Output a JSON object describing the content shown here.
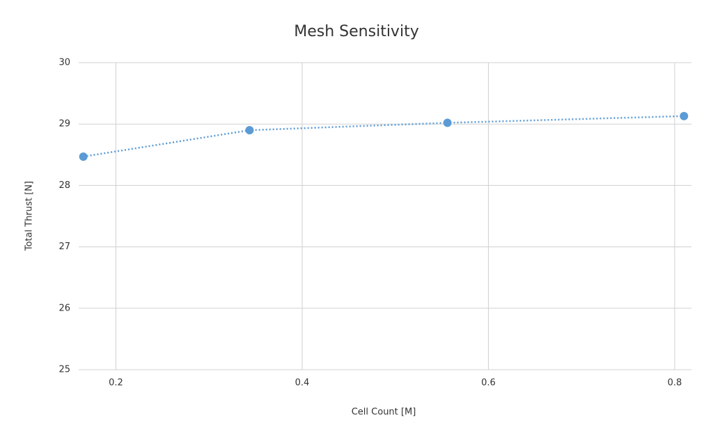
{
  "chart_data": {
    "type": "scatter",
    "title": "Mesh Sensitivity",
    "x_label": "Cell Count [M]",
    "y_label": "Total Thrust [N]",
    "series": [
      {
        "name": "Total Thrust",
        "color": "#5b9bd5",
        "x": [
          0.165,
          0.3435,
          0.556,
          0.81
        ],
        "values": [
          28.47,
          28.9,
          29.02,
          29.13
        ]
      }
    ],
    "xlim": [
      0.16,
      0.818
    ],
    "xticks": [
      0.2,
      0.4,
      0.6,
      0.8
    ],
    "ylim": [
      25,
      30
    ],
    "yticks": [
      25,
      26,
      27,
      28,
      29,
      30
    ],
    "grid": true
  }
}
